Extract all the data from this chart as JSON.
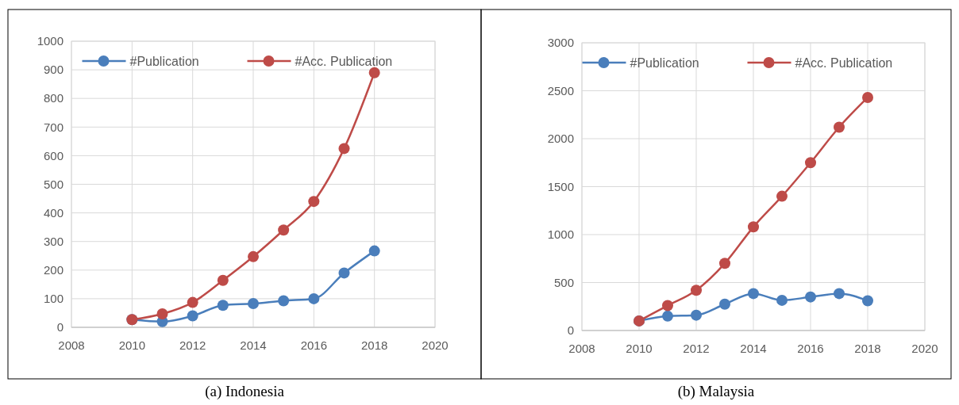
{
  "chart_data": [
    {
      "type": "line",
      "title": "(a) Indonesia",
      "x": [
        2010,
        2011,
        2012,
        2013,
        2014,
        2015,
        2016,
        2017,
        2018
      ],
      "series": [
        {
          "name": "#Publication",
          "color": "#4a7ebb",
          "values": [
            27,
            20,
            40,
            77,
            83,
            93,
            100,
            190,
            267
          ]
        },
        {
          "name": "#Acc. Publication",
          "color": "#be4b48",
          "values": [
            27,
            47,
            87,
            164,
            247,
            340,
            440,
            625,
            890
          ]
        }
      ],
      "xlim": [
        2008,
        2020
      ],
      "xticks": [
        2008,
        2010,
        2012,
        2014,
        2016,
        2018,
        2020
      ],
      "ylim": [
        0,
        1000
      ],
      "yticks": [
        0,
        100,
        200,
        300,
        400,
        500,
        600,
        700,
        800,
        900,
        1000
      ],
      "grid": true,
      "legend": "top",
      "marker": "circle",
      "line_style": "solid"
    },
    {
      "type": "line",
      "title": "(b) Malaysia",
      "x": [
        2010,
        2011,
        2012,
        2013,
        2014,
        2015,
        2016,
        2017,
        2018
      ],
      "series": [
        {
          "name": "#Publication",
          "color": "#4a7ebb",
          "values": [
            100,
            150,
            160,
            275,
            385,
            315,
            350,
            385,
            310
          ]
        },
        {
          "name": "#Acc. Publication",
          "color": "#be4b48",
          "values": [
            100,
            260,
            420,
            700,
            1080,
            1400,
            1750,
            2120,
            2430
          ]
        }
      ],
      "xlim": [
        2008,
        2020
      ],
      "xticks": [
        2008,
        2010,
        2012,
        2014,
        2016,
        2018,
        2020
      ],
      "ylim": [
        0,
        3000
      ],
      "yticks": [
        0,
        500,
        1000,
        1500,
        2000,
        2500,
        3000
      ],
      "grid": true,
      "legend": "top",
      "marker": "circle",
      "line_style": "solid"
    }
  ]
}
